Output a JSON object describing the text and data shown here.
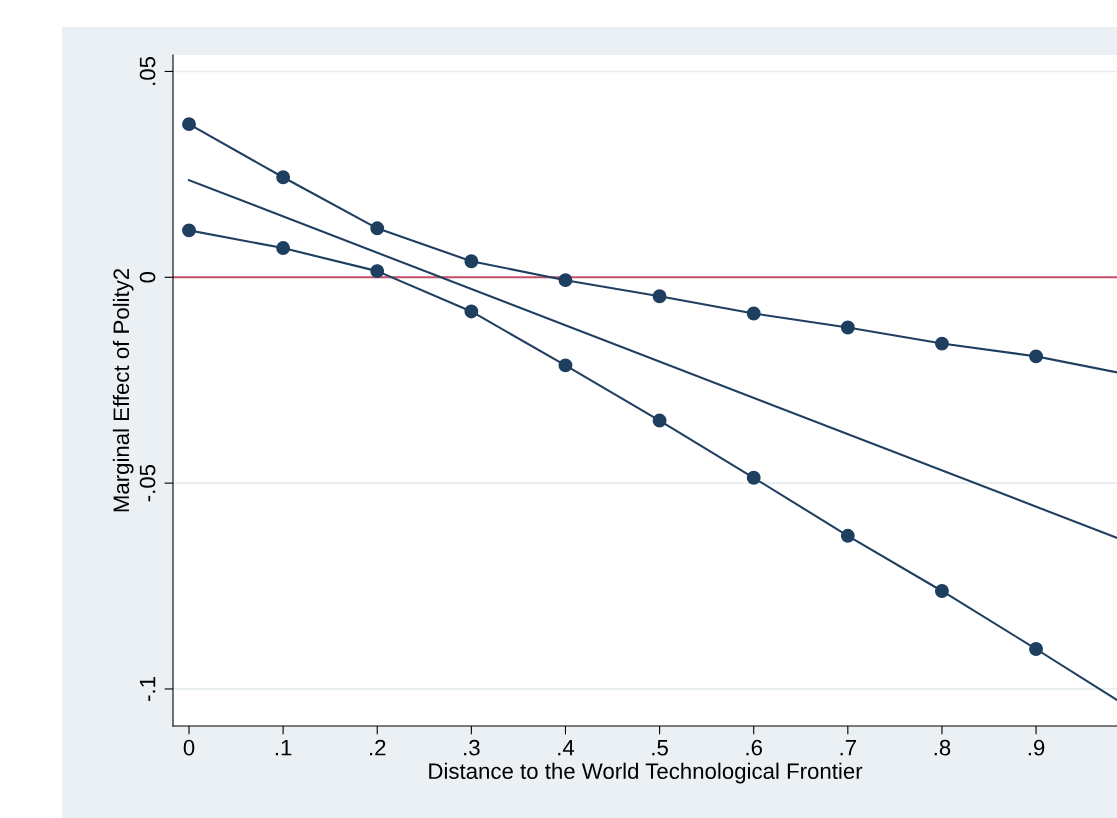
{
  "chart_data": {
    "type": "line",
    "xlabel": "Distance to the World Technological Frontier",
    "ylabel": "Marginal Effect of Polity2",
    "series": [
      {
        "color": "#1f3f60",
        "marker": "circle",
        "x": [
          0,
          0.1,
          0.2,
          0.3,
          0.4,
          0.5,
          0.6,
          0.7,
          0.8,
          0.9
        ],
        "values": [
          0.0372,
          0.0243,
          0.0119,
          0.0039,
          -0.0007,
          -0.0046,
          -0.0088,
          -0.0122,
          -0.0161,
          -0.0192
        ]
      },
      {
        "color": "#1f3f60",
        "marker": "none",
        "x": [
          0.9,
          0.986
        ],
        "values": [
          -0.0192,
          -0.0231
        ]
      },
      {
        "color": "#1f3f60",
        "marker": "none",
        "x": [
          0,
          0.986
        ],
        "values": [
          0.0236,
          -0.0633
        ]
      },
      {
        "color": "#1f3f60",
        "marker": "circle",
        "x": [
          0,
          0.1,
          0.2,
          0.3,
          0.4,
          0.5,
          0.6,
          0.7,
          0.8,
          0.9
        ],
        "values": [
          0.0114,
          0.0071,
          0.0015,
          -0.0083,
          -0.0214,
          -0.0348,
          -0.0487,
          -0.0628,
          -0.0762,
          -0.0903
        ]
      },
      {
        "color": "#1f3f60",
        "marker": "none",
        "x": [
          0.9,
          0.986
        ],
        "values": [
          -0.0903,
          -0.1027
        ]
      }
    ],
    "xlim": [
      -0.017,
      0.986
    ],
    "xticks": [
      {
        "value": 0,
        "label": "0"
      },
      {
        "value": 0.1,
        "label": ".1"
      },
      {
        "value": 0.2,
        "label": ".2"
      },
      {
        "value": 0.3,
        "label": ".3"
      },
      {
        "value": 0.4,
        "label": ".4"
      },
      {
        "value": 0.5,
        "label": ".5"
      },
      {
        "value": 0.6,
        "label": ".6"
      },
      {
        "value": 0.7,
        "label": ".7"
      },
      {
        "value": 0.8,
        "label": ".8"
      },
      {
        "value": 0.9,
        "label": ".9"
      }
    ],
    "ylim": [
      -0.109,
      0.054
    ],
    "yticks": [
      {
        "value": -0.1,
        "label": "-.1"
      },
      {
        "value": -0.05,
        "label": "-.05"
      },
      {
        "value": 0,
        "label": "0"
      },
      {
        "value": 0.05,
        "label": ".05"
      }
    ],
    "ref_lines": [
      {
        "axis": "y",
        "value": 0,
        "color": "#c8506a"
      }
    ],
    "grid": "y",
    "legend": false
  }
}
